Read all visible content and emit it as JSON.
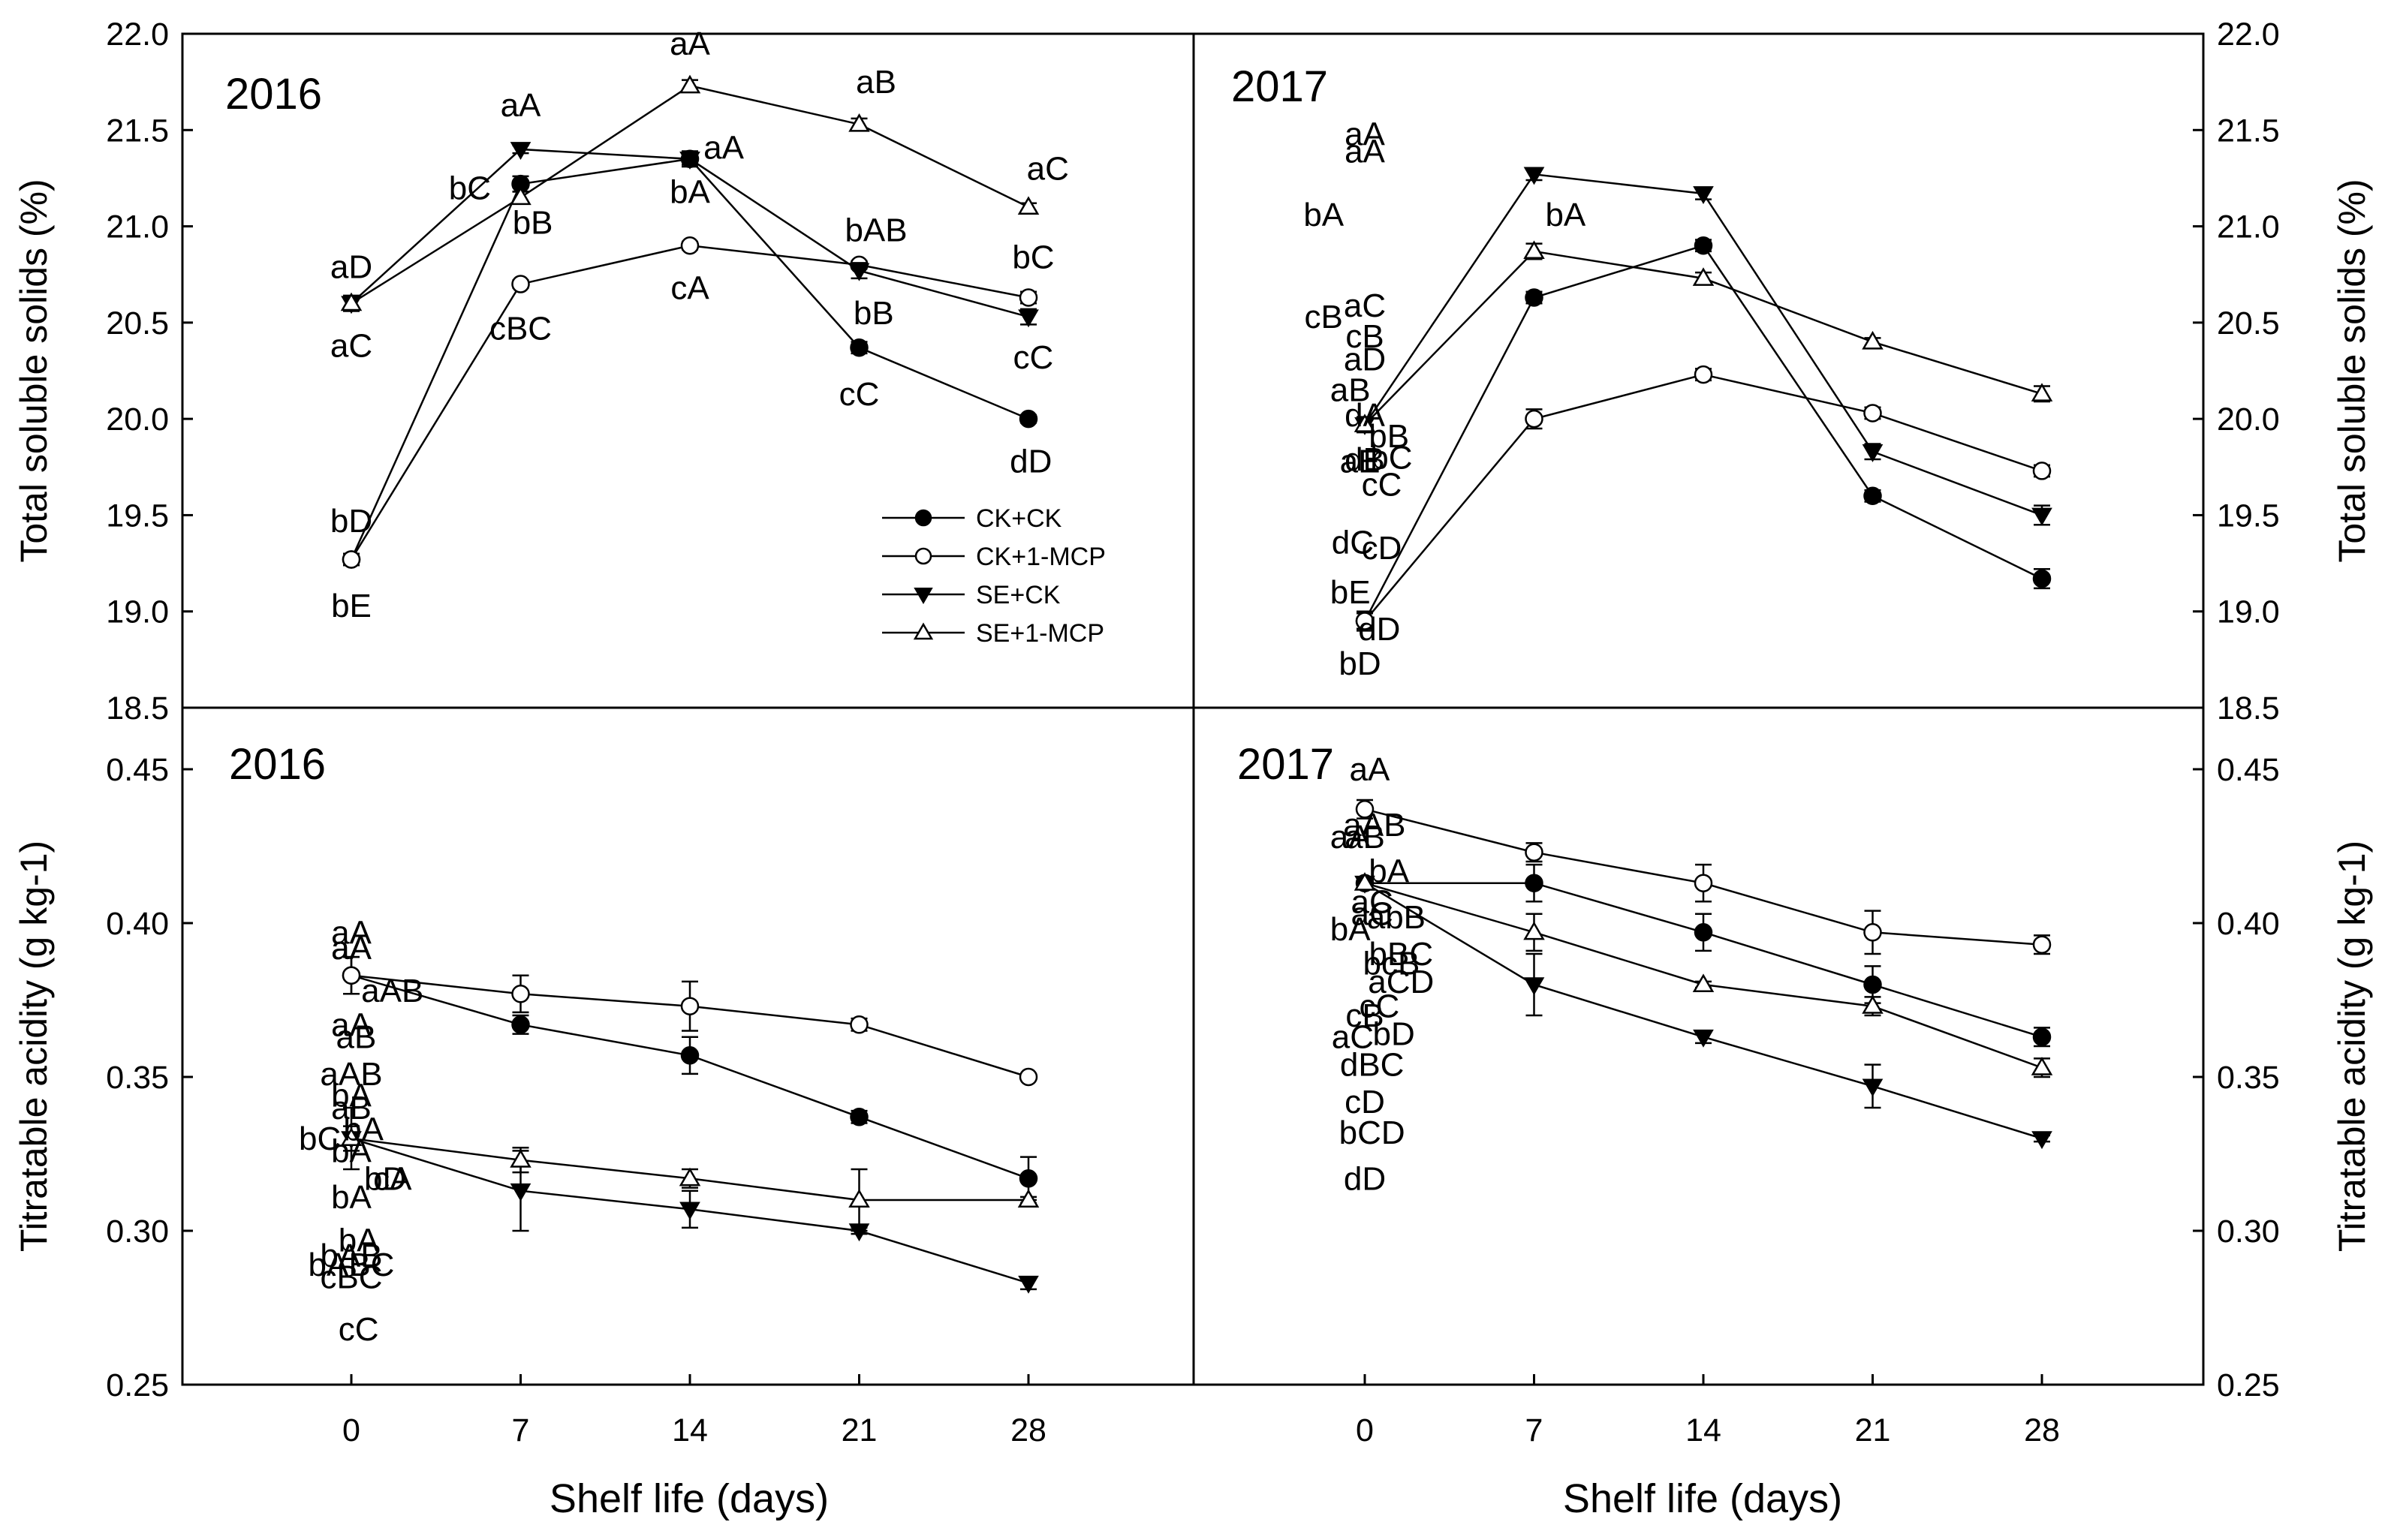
{
  "chart_data": {
    "type": "line",
    "x": [
      0,
      7,
      14,
      21,
      28
    ],
    "xlabel": "Shelf life (days)",
    "legend": {
      "placement": "inside lower-right of top-left panel",
      "entries": [
        {
          "name": "CK+CK",
          "marker": "filled-circle"
        },
        {
          "name": "CK+1-MCP",
          "marker": "open-circle"
        },
        {
          "name": "SE+CK",
          "marker": "filled-down-triangle"
        },
        {
          "name": "SE+1-MCP",
          "marker": "open-up-triangle"
        }
      ]
    },
    "x_ticks": [
      "0",
      "7",
      "14",
      "21",
      "28"
    ],
    "panels": [
      {
        "id": "tss-2016",
        "title": "2016",
        "ylabel": "Total soluble solids (%)",
        "ylim": [
          18.5,
          22.0
        ],
        "yticks": [
          "18.5",
          "19.0",
          "19.5",
          "20.0",
          "20.5",
          "21.0",
          "21.5",
          "22.0"
        ],
        "series": [
          {
            "name": "CK+CK",
            "values": [
              19.27,
              21.22,
              21.35,
              20.37,
              20.0
            ],
            "err": [
              0.03,
              0.04,
              0.04,
              0.03,
              0.02
            ]
          },
          {
            "name": "CK+1-MCP",
            "values": [
              19.27,
              20.7,
              20.9,
              20.8,
              20.63
            ],
            "err": [
              0.03,
              0.02,
              0.02,
              0.02,
              0.03
            ]
          },
          {
            "name": "SE+CK",
            "values": [
              20.6,
              21.4,
              21.35,
              20.77,
              20.53
            ],
            "err": [
              0.03,
              0.02,
              0.03,
              0.04,
              0.04
            ]
          },
          {
            "name": "SE+1-MCP",
            "values": [
              20.6,
              21.15,
              21.73,
              21.53,
              21.1
            ],
            "err": [
              0.04,
              0.03,
              0.03,
              0.03,
              0.02
            ]
          }
        ],
        "annotations": [
          {
            "text": "aD",
            "x": 0,
            "y": 20.79
          },
          {
            "text": "aC",
            "x": 0,
            "y": 20.38
          },
          {
            "text": "bD",
            "x": 0,
            "y": 19.47
          },
          {
            "text": "bE",
            "x": 0,
            "y": 19.03
          },
          {
            "text": "aA",
            "x": 7,
            "y": 21.63
          },
          {
            "text": "bC",
            "x": 4.9,
            "y": 21.2
          },
          {
            "text": "bB",
            "x": 7.5,
            "y": 21.02
          },
          {
            "text": "cBC",
            "x": 7,
            "y": 20.47
          },
          {
            "text": "aA",
            "x": 14,
            "y": 21.95
          },
          {
            "text": "aA",
            "x": 15.4,
            "y": 21.41
          },
          {
            "text": "bA",
            "x": 14,
            "y": 21.18
          },
          {
            "text": "cA",
            "x": 14,
            "y": 20.68
          },
          {
            "text": "aB",
            "x": 21.7,
            "y": 21.75
          },
          {
            "text": "bAB",
            "x": 21.7,
            "y": 20.98
          },
          {
            "text": "bB",
            "x": 21.6,
            "y": 20.55
          },
          {
            "text": "cC",
            "x": 21,
            "y": 20.13
          },
          {
            "text": "aC",
            "x": 28.8,
            "y": 21.3
          },
          {
            "text": "bC",
            "x": 28.2,
            "y": 20.84
          },
          {
            "text": "cC",
            "x": 28.2,
            "y": 20.32
          },
          {
            "text": "dD",
            "x": 28.1,
            "y": 19.78
          }
        ]
      },
      {
        "id": "tss-2017",
        "title": "2017",
        "ylabel": "Total soluble solids (%)",
        "ylim": [
          18.5,
          22.0
        ],
        "yticks": [
          "18.5",
          "19.0",
          "19.5",
          "20.0",
          "20.5",
          "21.0",
          "21.5",
          "22.0"
        ],
        "series": [
          {
            "name": "CK+CK",
            "values": [
              18.95,
              20.63,
              20.9,
              19.6,
              19.17
            ],
            "err": [
              0.04,
              0.03,
              0.03,
              0.03,
              0.05
            ]
          },
          {
            "name": "CK+1-MCP",
            "values": [
              18.95,
              20.0,
              20.23,
              20.03,
              19.73
            ],
            "err": [
              0.05,
              0.05,
              0.03,
              0.03,
              0.03
            ]
          },
          {
            "name": "SE+CK",
            "values": [
              19.97,
              21.27,
              21.17,
              19.83,
              19.5
            ],
            "err": [
              0.03,
              0.03,
              0.03,
              0.04,
              0.05
            ]
          },
          {
            "name": "SE+1-MCP",
            "values": [
              19.97,
              20.87,
              20.73,
              20.4,
              20.13
            ],
            "err": [
              0.04,
              0.04,
              0.03,
              0.02,
              0.04
            ]
          }
        ],
        "annotations": [
          {
            "text": "aB",
            "x": -0.6,
            "y": 20.15
          },
          {
            "text": "aE",
            "x": -0.2,
            "y": 19.78
          },
          {
            "text": "bE",
            "x": -0.6,
            "y": 19.1
          },
          {
            "text": "bD",
            "x": -0.2,
            "y": 18.73
          },
          {
            "text": "aA",
            "x": 0,
            "y": 21.48
          },
          {
            "text": "bA",
            "x": 8.3,
            "y": 21.06
          },
          {
            "text": "cB",
            "x": 0,
            "y": 20.43
          },
          {
            "text": "dB",
            "x": 0,
            "y": 19.79
          },
          {
            "text": "aA",
            "x": 0,
            "y": 21.39
          },
          {
            "text": "bA",
            "x": -1.7,
            "y": 21.06
          },
          {
            "text": "cB",
            "x": -1.7,
            "y": 20.53
          },
          {
            "text": "dA",
            "x": 0,
            "y": 20.02
          },
          {
            "text": "aC",
            "x": 0,
            "y": 20.59
          },
          {
            "text": "bB",
            "x": 1,
            "y": 19.91
          },
          {
            "text": "cC",
            "x": 0.7,
            "y": 19.66
          },
          {
            "text": "dC",
            "x": -0.5,
            "y": 19.36
          },
          {
            "text": "aD",
            "x": 0,
            "y": 20.31
          },
          {
            "text": "bC",
            "x": 1.1,
            "y": 19.8
          },
          {
            "text": "cD",
            "x": 0.7,
            "y": 19.33
          },
          {
            "text": "dD",
            "x": 0.6,
            "y": 18.91
          }
        ]
      },
      {
        "id": "ta-2016",
        "title": "2016",
        "ylabel": "Titratable acidity (g kg-1)",
        "ylim": [
          0.25,
          0.47
        ],
        "yticks": [
          "0.25",
          "0.30",
          "0.35",
          "0.40",
          "0.45"
        ],
        "series": [
          {
            "name": "CK+CK",
            "values": [
              0.383,
              0.367,
              0.357,
              0.337,
              0.317
            ],
            "err": [
              0.006,
              0.003,
              0.006,
              0.002,
              0.007
            ]
          },
          {
            "name": "CK+1-MCP",
            "values": [
              0.383,
              0.377,
              0.373,
              0.367,
              0.35
            ],
            "err": [
              0.006,
              0.006,
              0.008,
              0.002,
              0.001
            ]
          },
          {
            "name": "SE+CK",
            "values": [
              0.33,
              0.313,
              0.307,
              0.3,
              0.283
            ],
            "err": [
              0.01,
              0.013,
              0.006,
              0.001,
              0.002
            ]
          },
          {
            "name": "SE+1-MCP",
            "values": [
              0.33,
              0.323,
              0.317,
              0.31,
              0.31
            ],
            "err": [
              0.004,
              0.004,
              0.003,
              0.01,
              0.001
            ]
          }
        ],
        "annotations": [
          {
            "text": "aA",
            "x": 0,
            "y": 0.397
          },
          {
            "text": "aA",
            "x": 0,
            "y": 0.367
          },
          {
            "text": "bA",
            "x": 0,
            "y": 0.344
          },
          {
            "text": "bA",
            "x": 0,
            "y": 0.311
          },
          {
            "text": "aA",
            "x": 0,
            "y": 0.392
          },
          {
            "text": "aAB",
            "x": 0,
            "y": 0.351
          },
          {
            "text": "bA",
            "x": 0.5,
            "y": 0.333
          },
          {
            "text": "bAB",
            "x": 0,
            "y": 0.292
          },
          {
            "text": "aA",
            "x": 0,
            "y": 0.392
          },
          {
            "text": "aB",
            "x": 0,
            "y": 0.34
          },
          {
            "text": "bA",
            "x": 0,
            "y": 0.326
          },
          {
            "text": "bABC",
            "x": 0,
            "y": 0.289
          },
          {
            "text": "aAB",
            "x": 1.7,
            "y": 0.378
          },
          {
            "text": "bC",
            "x": -1.3,
            "y": 0.33
          },
          {
            "text": "cA",
            "x": 1.7,
            "y": 0.317
          },
          {
            "text": "cBC",
            "x": 0,
            "y": 0.285
          },
          {
            "text": "aB",
            "x": 0.2,
            "y": 0.363
          },
          {
            "text": "bD",
            "x": 1.4,
            "y": 0.317
          },
          {
            "text": "bA",
            "x": 0.3,
            "y": 0.297
          },
          {
            "text": "cC",
            "x": 0.3,
            "y": 0.268
          }
        ]
      },
      {
        "id": "ta-2017",
        "title": "2017",
        "ylabel": "Titratable acidity (g kg-1)",
        "ylim": [
          0.25,
          0.47
        ],
        "yticks": [
          "0.25",
          "0.30",
          "0.35",
          "0.40",
          "0.45"
        ],
        "series": [
          {
            "name": "CK+CK",
            "values": [
              0.413,
              0.413,
              0.397,
              0.38,
              0.363
            ],
            "err": [
              0.002,
              0.006,
              0.006,
              0.006,
              0.003
            ]
          },
          {
            "name": "CK+1-MCP",
            "values": [
              0.437,
              0.423,
              0.413,
              0.397,
              0.393
            ],
            "err": [
              0.003,
              0.003,
              0.006,
              0.007,
              0.003
            ]
          },
          {
            "name": "SE+CK",
            "values": [
              0.413,
              0.38,
              0.363,
              0.347,
              0.33
            ],
            "err": [
              0.002,
              0.01,
              0.002,
              0.007,
              0.001
            ]
          },
          {
            "name": "SE+1-MCP",
            "values": [
              0.413,
              0.397,
              0.38,
              0.373,
              0.353
            ],
            "err": [
              0.002,
              0.006,
              0.001,
              0.003,
              0.003
            ]
          }
        ],
        "annotations": [
          {
            "text": "aA",
            "x": 0.2,
            "y": 0.45
          },
          {
            "text": "aA",
            "x": -0.6,
            "y": 0.428
          },
          {
            "text": "bA",
            "x": 1,
            "y": 0.417
          },
          {
            "text": "bA",
            "x": -0.6,
            "y": 0.398
          },
          {
            "text": "aAB",
            "x": 0.4,
            "y": 0.432
          },
          {
            "text": "abB",
            "x": 1.3,
            "y": 0.402
          },
          {
            "text": "bcB",
            "x": 1.1,
            "y": 0.387
          },
          {
            "text": "cB",
            "x": 0,
            "y": 0.37
          },
          {
            "text": "aB",
            "x": 0,
            "y": 0.428
          },
          {
            "text": "bBC",
            "x": 1.5,
            "y": 0.39
          },
          {
            "text": "cC",
            "x": 0.6,
            "y": 0.373
          },
          {
            "text": "dBC",
            "x": 0.3,
            "y": 0.354
          },
          {
            "text": "aC",
            "x": 0.3,
            "y": 0.407
          },
          {
            "text": "aCD",
            "x": 1.5,
            "y": 0.381
          },
          {
            "text": "aC",
            "x": -0.5,
            "y": 0.363
          },
          {
            "text": "bCD",
            "x": 0.3,
            "y": 0.332
          },
          {
            "text": "aC",
            "x": 0.3,
            "y": 0.403
          },
          {
            "text": "bD",
            "x": 1.2,
            "y": 0.364
          },
          {
            "text": "cD",
            "x": 0,
            "y": 0.342
          },
          {
            "text": "dD",
            "x": 0,
            "y": 0.317
          }
        ]
      }
    ]
  }
}
